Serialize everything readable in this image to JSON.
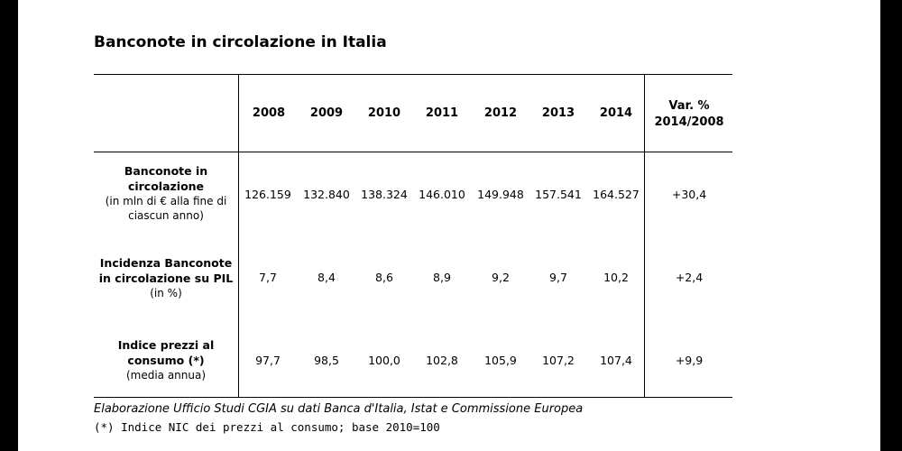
{
  "title": "Banconote in circolazione in Italia",
  "years": [
    "2008",
    "2009",
    "2010",
    "2011",
    "2012",
    "2013",
    "2014"
  ],
  "var_header": {
    "line1": "Var. %",
    "line2": "2014/2008"
  },
  "rows": [
    {
      "label_main": "Banconote in circolazione",
      "label_sub": "(in mln di € alla fine di ciascun anno)",
      "values": [
        "126.159",
        "132.840",
        "138.324",
        "146.010",
        "149.948",
        "157.541",
        "164.527"
      ],
      "var": "+30,4"
    },
    {
      "label_main": "Incidenza Banconote in circolazione su PIL",
      "label_sub": "(in %)",
      "values": [
        "7,7",
        "8,4",
        "8,6",
        "8,9",
        "9,2",
        "9,7",
        "10,2"
      ],
      "var": "+2,4"
    },
    {
      "label_main": "Indice prezzi al consumo (*)",
      "label_sub": "(media annua)",
      "values": [
        "97,7",
        "98,5",
        "100,0",
        "102,8",
        "105,9",
        "107,2",
        "107,4"
      ],
      "var": "+9,9"
    }
  ],
  "source_note": "Elaborazione Ufficio Studi CGIA su dati Banca d'Italia, Istat e Commissione Europea",
  "footnote": "(*) Indice NIC dei prezzi al consumo; base 2010=100"
}
